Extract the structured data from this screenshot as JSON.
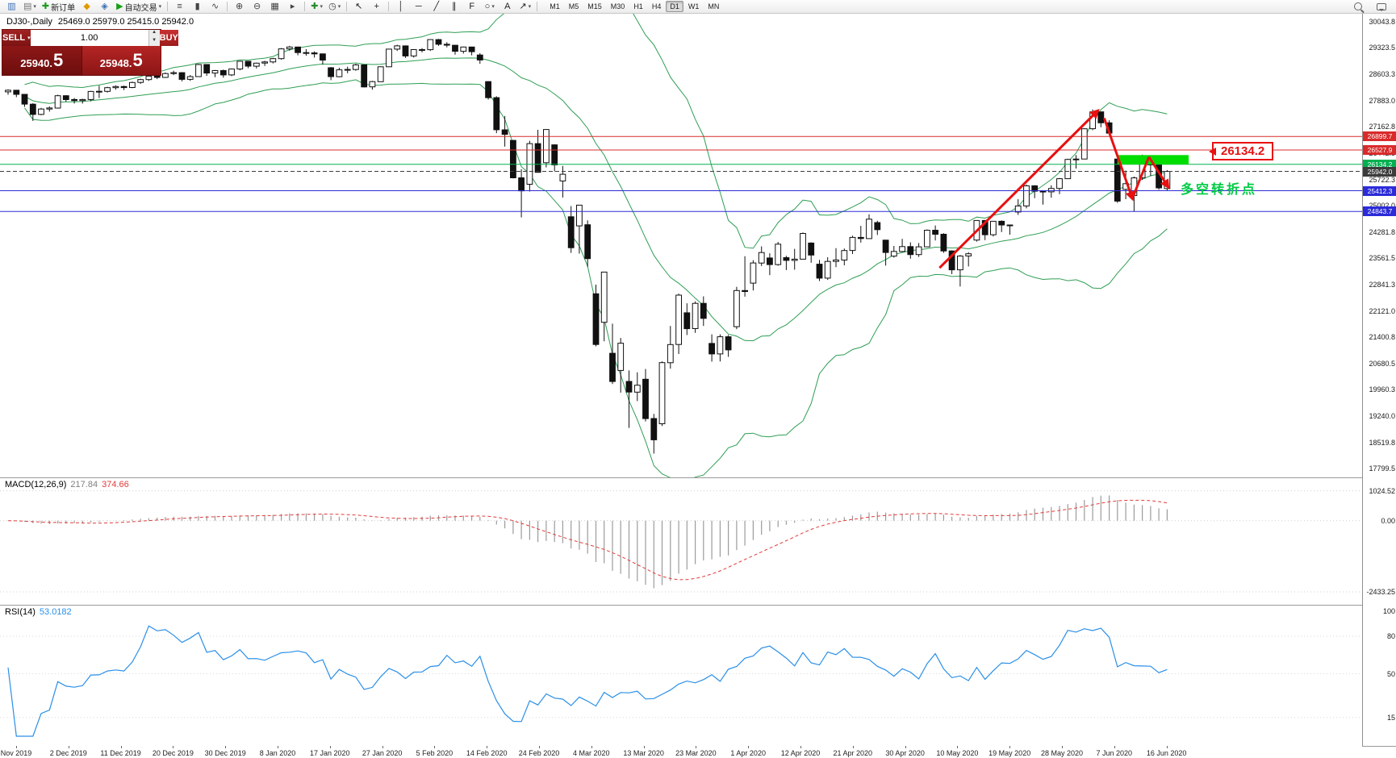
{
  "toolbar": {
    "items": [
      {
        "name": "new-chart",
        "glyph": "▥",
        "color": "#3a6fb5"
      },
      {
        "name": "chart-profiles",
        "glyph": "▤",
        "color": "#777777",
        "dropdown": true
      },
      {
        "name": "new-order",
        "glyph": "✚",
        "color": "#1a9c1a",
        "label": "新订单"
      },
      {
        "name": "market-watch",
        "glyph": "◆",
        "color": "#e09a00"
      },
      {
        "name": "data-window",
        "glyph": "◈",
        "color": "#3a6fb5"
      },
      {
        "name": "autotrading",
        "glyph": "▶",
        "color": "#15a015",
        "label": "自动交易",
        "dropdown": true
      },
      {
        "sep": true
      },
      {
        "name": "chart-bars",
        "glyph": "≡",
        "color": "#444444"
      },
      {
        "name": "chart-candles",
        "glyph": "▮",
        "color": "#444444"
      },
      {
        "name": "chart-line",
        "glyph": "∿",
        "color": "#444444"
      },
      {
        "sep": true
      },
      {
        "name": "zoom-in",
        "glyph": "⊕",
        "color": "#444444"
      },
      {
        "name": "zoom-out",
        "glyph": "⊖",
        "color": "#444444"
      },
      {
        "name": "tile-windows",
        "glyph": "▦",
        "color": "#444444"
      },
      {
        "name": "chart-shift",
        "glyph": "▸",
        "color": "#444444"
      },
      {
        "sep": true
      },
      {
        "name": "indicators",
        "glyph": "✚",
        "color": "#2a8a2a",
        "dropdown": true
      },
      {
        "name": "periods",
        "glyph": "◷",
        "color": "#444444",
        "dropdown": true
      },
      {
        "sep": true
      },
      {
        "name": "cursor",
        "glyph": "↖",
        "color": "#222222"
      },
      {
        "name": "crosshair",
        "glyph": "+",
        "color": "#222222"
      },
      {
        "sep": true
      },
      {
        "name": "vertical-line",
        "glyph": "│",
        "color": "#222222"
      },
      {
        "name": "horizontal-line",
        "glyph": "─",
        "color": "#222222"
      },
      {
        "name": "trendline",
        "glyph": "╱",
        "color": "#222222"
      },
      {
        "name": "channel",
        "glyph": "∥",
        "color": "#222222"
      },
      {
        "name": "fibonacci",
        "glyph": "F",
        "color": "#222222"
      },
      {
        "name": "shapes",
        "glyph": "○",
        "color": "#222222",
        "dropdown": true
      },
      {
        "name": "text-label",
        "glyph": "A",
        "color": "#222222"
      },
      {
        "name": "arrows-tool",
        "glyph": "↗",
        "color": "#222222",
        "dropdown": true
      },
      {
        "sep": true
      }
    ],
    "timeframes": [
      "M1",
      "M5",
      "M15",
      "M30",
      "H1",
      "H4",
      "D1",
      "W1",
      "MN"
    ],
    "active_timeframe": "D1"
  },
  "quote": {
    "symbol": "DJ30-,Daily",
    "ohlc": "25469.0 25979.0 25415.0 25942.0"
  },
  "one_click": {
    "sell_label": "SELL",
    "buy_label": "BUY",
    "volume": "1.00",
    "sell_price_main": "25940.",
    "sell_price_frac": "5",
    "buy_price_main": "25948.",
    "buy_price_frac": "5"
  },
  "annotations": {
    "trend_color": "#e81010",
    "trend_lines": [
      {
        "points": [
          [
            112.5,
            23300
          ],
          [
            131.6,
            27600
          ]
        ],
        "arrow": true
      },
      {
        "points": [
          [
            132.4,
            27400
          ],
          [
            135.8,
            25200
          ]
        ],
        "arrow": true
      },
      {
        "points": [
          [
            135.8,
            25200
          ],
          [
            137.8,
            26340
          ]
        ],
        "arrow": false
      },
      {
        "points": [
          [
            137.8,
            26340
          ],
          [
            140.1,
            25520
          ]
        ],
        "arrow": true
      }
    ],
    "highlight_rect": {
      "i0": 134,
      "i1": 142.6,
      "p0": 26134,
      "p1": 26390,
      "color": "#00dd00"
    },
    "price_flag": {
      "text": "26134.2"
    },
    "turning_point": {
      "text": "多空转折点"
    }
  },
  "chart_data": {
    "type": "candlestick",
    "symbol": "DJ30-",
    "period": "Daily",
    "ohlc_header": {
      "open": "25469.0",
      "high": "25979.0",
      "low": "25415.0",
      "close": "25942.0"
    },
    "ylim": [
      17650,
      30150
    ],
    "y_axis": {
      "labels": [
        "30043.8",
        "29323.5",
        "28603.3",
        "27883.0",
        "27162.8",
        "26442.5",
        "25722.3",
        "25002.0",
        "24281.8",
        "23561.5",
        "22841.3",
        "22121.0",
        "21400.8",
        "20680.5",
        "19960.3",
        "19240.0",
        "18519.8",
        "17799.5"
      ]
    },
    "hlines": [
      {
        "price": 26899.7,
        "tag": "26899.7",
        "color": "#d92b2b",
        "dashed": false
      },
      {
        "price": 26527.9,
        "tag": "26527.9",
        "color": "#d92b2b",
        "dashed": false
      },
      {
        "price": 26134.2,
        "tag": "26134.2",
        "color": "#00b050",
        "dashed": false
      },
      {
        "price": 25942.0,
        "tag": "25942.0",
        "color": "#3c3c3c",
        "dashed": true
      },
      {
        "price": 25412.3,
        "tag": "25412.3",
        "color": "#2b2bd9",
        "dashed": false
      },
      {
        "price": 24843.7,
        "tag": "24843.7",
        "color": "#2b2bd9",
        "dashed": false
      }
    ],
    "bollinger": {
      "period": 20,
      "deviation": 2,
      "color": "#2f9e54"
    },
    "x_axis_dates": [
      "Nov 2019",
      "2 Dec 2019",
      "11 Dec 2019",
      "20 Dec 2019",
      "30 Dec 2019",
      "8 Jan 2020",
      "17 Jan 2020",
      "27 Jan 2020",
      "5 Feb 2020",
      "14 Feb 2020",
      "24 Feb 2020",
      "4 Mar 2020",
      "13 Mar 2020",
      "23 Mar 2020",
      "1 Apr 2020",
      "12 Apr 2020",
      "21 Apr 2020",
      "30 Apr 2020",
      "10 May 2020",
      "19 May 2020",
      "28 May 2020",
      "7 Jun 2020",
      "16 Jun 2020"
    ],
    "macd": {
      "title": "MACD(12,26,9)",
      "value_main": "217.84",
      "value_signal": "374.66",
      "axis_labels": [
        "1024.52",
        "0.00",
        "-2433.25"
      ],
      "axis_values": [
        1024.52,
        0,
        -2433.25
      ],
      "ylim": [
        -2600,
        1150
      ]
    },
    "rsi": {
      "title": "RSI(14)",
      "value": "53.0182",
      "axis_labels": [
        "100",
        "80",
        "50",
        "15"
      ],
      "axis_values": [
        100,
        80,
        50,
        15
      ],
      "levels": [
        80,
        50,
        15
      ],
      "ylim": [
        0,
        100
      ]
    },
    "candles": [
      [
        28120,
        28190,
        28040,
        28164
      ],
      [
        28164,
        28175,
        27975,
        28051
      ],
      [
        28051,
        28060,
        27710,
        27783
      ],
      [
        27783,
        27810,
        27325,
        27503
      ],
      [
        27503,
        27680,
        27480,
        27650
      ],
      [
        27650,
        27720,
        27580,
        27678
      ],
      [
        27678,
        28040,
        27660,
        28015
      ],
      [
        28015,
        28030,
        27850,
        27910
      ],
      [
        27910,
        27950,
        27800,
        27882
      ],
      [
        27882,
        27930,
        27800,
        27911
      ],
      [
        27911,
        28150,
        27860,
        28132
      ],
      [
        28132,
        28290,
        27950,
        28135
      ],
      [
        28135,
        28260,
        28100,
        28236
      ],
      [
        28236,
        28300,
        28180,
        28267
      ],
      [
        28267,
        28290,
        28170,
        28239
      ],
      [
        28239,
        28400,
        28220,
        28377
      ],
      [
        28377,
        28480,
        28340,
        28455
      ],
      [
        28455,
        28580,
        28420,
        28551
      ],
      [
        28551,
        28570,
        28470,
        28515
      ],
      [
        28515,
        28650,
        28500,
        28621
      ],
      [
        28621,
        28700,
        28580,
        28645
      ],
      [
        28645,
        28660,
        28410,
        28462
      ],
      [
        28462,
        28580,
        28420,
        28538
      ],
      [
        28538,
        28890,
        28530,
        28869
      ],
      [
        28869,
        28870,
        28560,
        28635
      ],
      [
        28635,
        28720,
        28520,
        28704
      ],
      [
        28704,
        28730,
        28510,
        28584
      ],
      [
        28584,
        28760,
        28550,
        28745
      ],
      [
        28745,
        28970,
        28710,
        28957
      ],
      [
        28957,
        28960,
        28770,
        28824
      ],
      [
        28824,
        28920,
        28760,
        28907
      ],
      [
        28907,
        28970,
        28830,
        28939
      ],
      [
        28939,
        29050,
        28900,
        29030
      ],
      [
        29030,
        29320,
        29000,
        29298
      ],
      [
        29298,
        29380,
        29250,
        29348
      ],
      [
        29348,
        29350,
        29120,
        29196
      ],
      [
        29196,
        29290,
        29110,
        29186
      ],
      [
        29186,
        29230,
        29060,
        29160
      ],
      [
        29160,
        29170,
        28870,
        28990
      ],
      [
        28780,
        28800,
        28440,
        28536
      ],
      [
        28536,
        28780,
        28520,
        28723
      ],
      [
        28723,
        28810,
        28630,
        28734
      ],
      [
        28734,
        28890,
        28700,
        28859
      ],
      [
        28859,
        28860,
        28240,
        28256
      ],
      [
        28256,
        28420,
        28180,
        28400
      ],
      [
        28400,
        28820,
        28390,
        28808
      ],
      [
        28808,
        29300,
        28800,
        29291
      ],
      [
        29291,
        29410,
        29240,
        29380
      ],
      [
        29380,
        29390,
        29050,
        29103
      ],
      [
        29103,
        29290,
        29060,
        29277
      ],
      [
        29277,
        29320,
        29200,
        29276
      ],
      [
        29276,
        29560,
        29240,
        29551
      ],
      [
        29551,
        29570,
        29380,
        29423
      ],
      [
        29423,
        29480,
        29340,
        29398
      ],
      [
        29398,
        29400,
        29140,
        29232
      ],
      [
        29232,
        29360,
        29170,
        29348
      ],
      [
        29348,
        29350,
        29120,
        29220
      ],
      [
        29130,
        29180,
        28890,
        28992
      ],
      [
        28400,
        28410,
        27910,
        27961
      ],
      [
        27961,
        28000,
        26990,
        27081
      ],
      [
        27081,
        27460,
        26620,
        26958
      ],
      [
        26790,
        26800,
        25750,
        25766
      ],
      [
        25766,
        26000,
        24681,
        25409
      ],
      [
        25590,
        26780,
        25390,
        26703
      ],
      [
        26703,
        27080,
        25910,
        25917
      ],
      [
        26180,
        27100,
        26050,
        27090
      ],
      [
        26670,
        26680,
        25940,
        26121
      ],
      [
        25680,
        26090,
        25226,
        25864
      ],
      [
        24700,
        24990,
        23710,
        23851
      ],
      [
        24450,
        25020,
        23690,
        25018
      ],
      [
        24480,
        24600,
        23330,
        23553
      ],
      [
        22590,
        22840,
        21150,
        21200
      ],
      [
        21810,
        23190,
        21290,
        23185
      ],
      [
        20960,
        21770,
        20117,
        20188
      ],
      [
        20490,
        21380,
        19882,
        21237
      ],
      [
        20190,
        20490,
        18917,
        19898
      ],
      [
        19898,
        20440,
        19650,
        20087
      ],
      [
        20250,
        20530,
        19094,
        19173
      ],
      [
        19173,
        19300,
        18213,
        18591
      ],
      [
        19030,
        20740,
        18970,
        20704
      ],
      [
        20704,
        21710,
        20540,
        21200
      ],
      [
        21200,
        22595,
        20940,
        22552
      ],
      [
        22070,
        22330,
        21460,
        21636
      ],
      [
        21636,
        22380,
        21520,
        22327
      ],
      [
        22327,
        22520,
        21710,
        21917
      ],
      [
        21230,
        21480,
        20730,
        20943
      ],
      [
        20943,
        21480,
        20735,
        21413
      ],
      [
        21413,
        21460,
        20863,
        21052
      ],
      [
        21690,
        22780,
        21620,
        22679
      ],
      [
        22679,
        23620,
        22510,
        22653
      ],
      [
        22880,
        23510,
        22680,
        23433
      ],
      [
        23433,
        23890,
        23350,
        23719
      ],
      [
        23570,
        23700,
        23100,
        23390
      ],
      [
        23390,
        24010,
        23360,
        23949
      ],
      [
        23580,
        23630,
        23240,
        23504
      ],
      [
        23504,
        23820,
        23250,
        23537
      ],
      [
        23537,
        24270,
        23530,
        24242
      ],
      [
        23980,
        24000,
        23440,
        23650
      ],
      [
        23400,
        23520,
        22940,
        23018
      ],
      [
        23018,
        23590,
        22970,
        23475
      ],
      [
        23475,
        23840,
        23320,
        23515
      ],
      [
        23515,
        23830,
        23370,
        23775
      ],
      [
        23775,
        24180,
        23680,
        24133
      ],
      [
        24133,
        24450,
        23990,
        24101
      ],
      [
        24101,
        24765,
        24110,
        24633
      ],
      [
        24540,
        24590,
        24200,
        24345
      ],
      [
        24060,
        24070,
        23361,
        23723
      ],
      [
        23620,
        23900,
        23580,
        23749
      ],
      [
        23749,
        24094,
        23730,
        23883
      ],
      [
        23883,
        24000,
        23550,
        23664
      ],
      [
        23664,
        23980,
        23600,
        23875
      ],
      [
        23875,
        24350,
        23870,
        24331
      ],
      [
        24331,
        24460,
        24050,
        24221
      ],
      [
        24221,
        24250,
        23710,
        23764
      ],
      [
        23764,
        23780,
        23130,
        23247
      ],
      [
        23247,
        23650,
        22790,
        23625
      ],
      [
        23625,
        23730,
        23340,
        23685
      ],
      [
        24060,
        24600,
        24020,
        24597
      ],
      [
        24597,
        24610,
        24060,
        24206
      ],
      [
        24206,
        24580,
        24160,
        24575
      ],
      [
        24575,
        24600,
        24280,
        24474
      ],
      [
        24474,
        24480,
        24210,
        24465
      ],
      [
        24830,
        25180,
        24750,
        24995
      ],
      [
        24995,
        25580,
        24930,
        25548
      ],
      [
        25548,
        25560,
        25210,
        25400
      ],
      [
        25400,
        25420,
        25030,
        25383
      ],
      [
        25383,
        25560,
        25220,
        25475
      ],
      [
        25475,
        25760,
        25320,
        25742
      ],
      [
        25742,
        26290,
        25740,
        26269
      ],
      [
        26269,
        26390,
        26020,
        26281
      ],
      [
        26281,
        27120,
        26280,
        27110
      ],
      [
        27110,
        27640,
        27070,
        27572
      ],
      [
        27572,
        27580,
        27150,
        27272
      ],
      [
        27272,
        27340,
        26940,
        26989
      ],
      [
        26280,
        26290,
        25080,
        25128
      ],
      [
        25450,
        25965,
        25180,
        25605
      ],
      [
        25280,
        25800,
        24844,
        25763
      ],
      [
        25763,
        26400,
        25710,
        26289
      ],
      [
        26289,
        26300,
        25810,
        26119
      ],
      [
        26119,
        26150,
        25440,
        25490
      ],
      [
        25469,
        25979,
        25415,
        25942
      ]
    ]
  }
}
